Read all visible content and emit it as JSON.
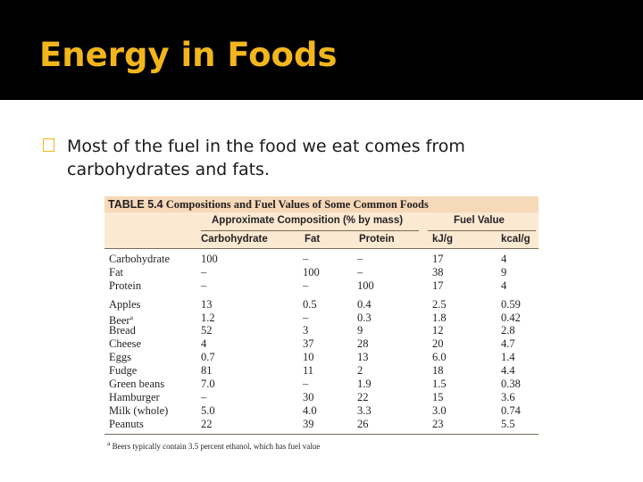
{
  "slide": {
    "title": "Energy in Foods",
    "bullet_text": "Most of the fuel in the food we eat comes from carbohydrates and fats.",
    "accent_color": "#f2b61c",
    "title_bar_color": "#000000",
    "bullet_icon_glyph": "�"
  },
  "table": {
    "label": "TABLE 5.4",
    "title": "Compositions and Fuel Values of Some Common Foods",
    "group_headers": {
      "composition": "Approximate Composition (% by mass)",
      "fuel": "Fuel Value"
    },
    "columns": [
      "Carbohydrate",
      "Fat",
      "Protein",
      "kJ/g",
      "kcal/g"
    ],
    "rows": [
      {
        "name": "Carbohydrate",
        "carb": "100",
        "fat": "–",
        "protein": "–",
        "kj": "17",
        "kcal": "4"
      },
      {
        "name": "Fat",
        "carb": "–",
        "fat": "100",
        "protein": "–",
        "kj": "38",
        "kcal": "9"
      },
      {
        "name": "Protein",
        "carb": "–",
        "fat": "–",
        "protein": "100",
        "kj": "17",
        "kcal": "4"
      },
      {
        "name": "Apples",
        "carb": "13",
        "fat": "0.5",
        "protein": "0.4",
        "kj": "2.5",
        "kcal": "0.59"
      },
      {
        "name": "Beer",
        "sup": "a",
        "carb": "1.2",
        "fat": "–",
        "protein": "0.3",
        "kj": "1.8",
        "kcal": "0.42"
      },
      {
        "name": "Bread",
        "carb": "52",
        "fat": "3",
        "protein": "9",
        "kj": "12",
        "kcal": "2.8"
      },
      {
        "name": "Cheese",
        "carb": "4",
        "fat": "37",
        "protein": "28",
        "kj": "20",
        "kcal": "4.7"
      },
      {
        "name": "Eggs",
        "carb": "0.7",
        "fat": "10",
        "protein": "13",
        "kj": "6.0",
        "kcal": "1.4"
      },
      {
        "name": "Fudge",
        "carb": "81",
        "fat": "11",
        "protein": "2",
        "kj": "18",
        "kcal": "4.4"
      },
      {
        "name": "Green beans",
        "carb": "7.0",
        "fat": "–",
        "protein": "1.9",
        "kj": "1.5",
        "kcal": "0.38"
      },
      {
        "name": "Hamburger",
        "carb": "–",
        "fat": "30",
        "protein": "22",
        "kj": "15",
        "kcal": "3.6"
      },
      {
        "name": "Milk (whole)",
        "carb": "5.0",
        "fat": "4.0",
        "protein": "3.3",
        "kj": "3.0",
        "kcal": "0.74"
      },
      {
        "name": "Peanuts",
        "carb": "22",
        "fat": "39",
        "protein": "26",
        "kj": "23",
        "kcal": "5.5"
      }
    ],
    "footnote_mark": "a",
    "footnote": "Beers typically contain 3.5 percent ethanol, which has fuel value"
  }
}
